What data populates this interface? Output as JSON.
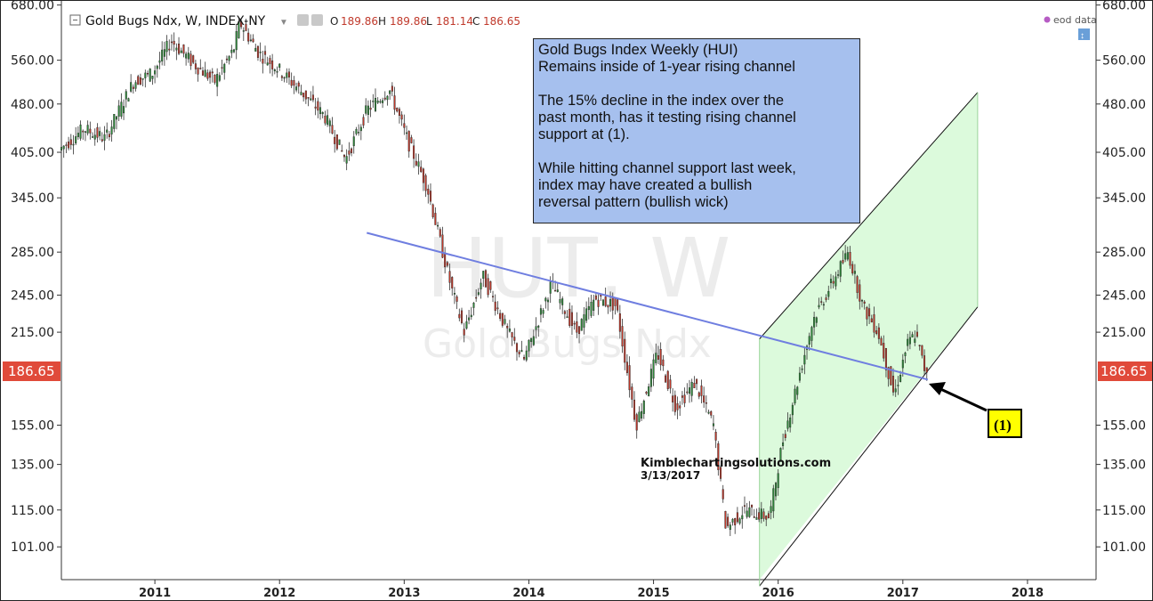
{
  "header": {
    "symbol": "Gold Bugs Ndx, W, INDEX-NY",
    "ohlc": {
      "o_label": "O",
      "o": "189.86",
      "h_label": "H",
      "h": "189.86",
      "l_label": "L",
      "l": "181.14",
      "c_label": "C",
      "c": "186.65"
    },
    "source_label": "eod data"
  },
  "watermark": {
    "line1": "HUT, W",
    "line2": "Gold Bugs Ndx"
  },
  "annotation": {
    "lines": [
      "Gold Bugs Index Weekly (HUI)\nRemains inside of 1-year rising channel",
      "The 15% decline in the index over the\npast month, has it testing rising channel\nsupport at (1).",
      "While hitting channel support last week,\nindex may have created a bullish\nreversal pattern (bullish wick)"
    ]
  },
  "credit": {
    "site": "Kimblechartingsolutions.com",
    "date": "3/13/2017"
  },
  "callout": {
    "label": "(1)"
  },
  "last_price_label": "186.65",
  "colors": {
    "up": "#2e8b3a",
    "down": "#c0392b",
    "trendline": "#6f7ee0",
    "channel_fill": "#dcfadc",
    "note_bg": "#a6c0ee",
    "callout_bg": "#ffff00",
    "price_tag": "#e04a3a"
  },
  "chart_data": {
    "type": "candlestick",
    "title": "Gold Bugs Ndx, W, INDEX-NY",
    "y_scale": "log",
    "ylim": [
      90,
      690
    ],
    "xlim": [
      2010.25,
      2018.55
    ],
    "y_ticks": [
      "680.00",
      "560.00",
      "480.00",
      "405.00",
      "345.00",
      "285.00",
      "245.00",
      "215.00",
      "155.00",
      "135.00",
      "115.00",
      "101.00"
    ],
    "x_ticks": [
      "2011",
      "2012",
      "2013",
      "2014",
      "2015",
      "2016",
      "2017",
      "2018"
    ],
    "anchors": [
      [
        2010.25,
        408
      ],
      [
        2010.45,
        440
      ],
      [
        2010.62,
        425
      ],
      [
        2010.85,
        520
      ],
      [
        2011.0,
        535
      ],
      [
        2011.15,
        600
      ],
      [
        2011.32,
        555
      ],
      [
        2011.5,
        520
      ],
      [
        2011.65,
        580
      ],
      [
        2011.7,
        640
      ],
      [
        2011.85,
        575
      ],
      [
        2012.0,
        545
      ],
      [
        2012.2,
        500
      ],
      [
        2012.38,
        460
      ],
      [
        2012.55,
        395
      ],
      [
        2012.72,
        470
      ],
      [
        2012.9,
        505
      ],
      [
        2013.05,
        420
      ],
      [
        2013.2,
        360
      ],
      [
        2013.3,
        300
      ],
      [
        2013.4,
        250
      ],
      [
        2013.5,
        215
      ],
      [
        2013.65,
        262
      ],
      [
        2013.85,
        215
      ],
      [
        2013.98,
        195
      ],
      [
        2014.2,
        255
      ],
      [
        2014.4,
        215
      ],
      [
        2014.55,
        242
      ],
      [
        2014.72,
        236
      ],
      [
        2014.88,
        155
      ],
      [
        2015.05,
        200
      ],
      [
        2015.2,
        165
      ],
      [
        2015.35,
        180
      ],
      [
        2015.5,
        155
      ],
      [
        2015.6,
        108
      ],
      [
        2015.75,
        115
      ],
      [
        2015.95,
        112
      ],
      [
        2016.05,
        145
      ],
      [
        2016.3,
        225
      ],
      [
        2016.58,
        285
      ],
      [
        2016.7,
        235
      ],
      [
        2016.82,
        215
      ],
      [
        2016.95,
        172
      ],
      [
        2017.05,
        205
      ],
      [
        2017.12,
        214
      ],
      [
        2017.2,
        186.65
      ]
    ],
    "trendline": {
      "points": [
        [
          2012.7,
          305
        ],
        [
          2017.2,
          182
        ]
      ]
    },
    "channel": {
      "lower": [
        [
          2015.85,
          88
        ],
        [
          2017.6,
          235
        ]
      ],
      "upper": [
        [
          2015.85,
          210
        ],
        [
          2017.6,
          500
        ]
      ]
    },
    "last_close": 186.65
  }
}
